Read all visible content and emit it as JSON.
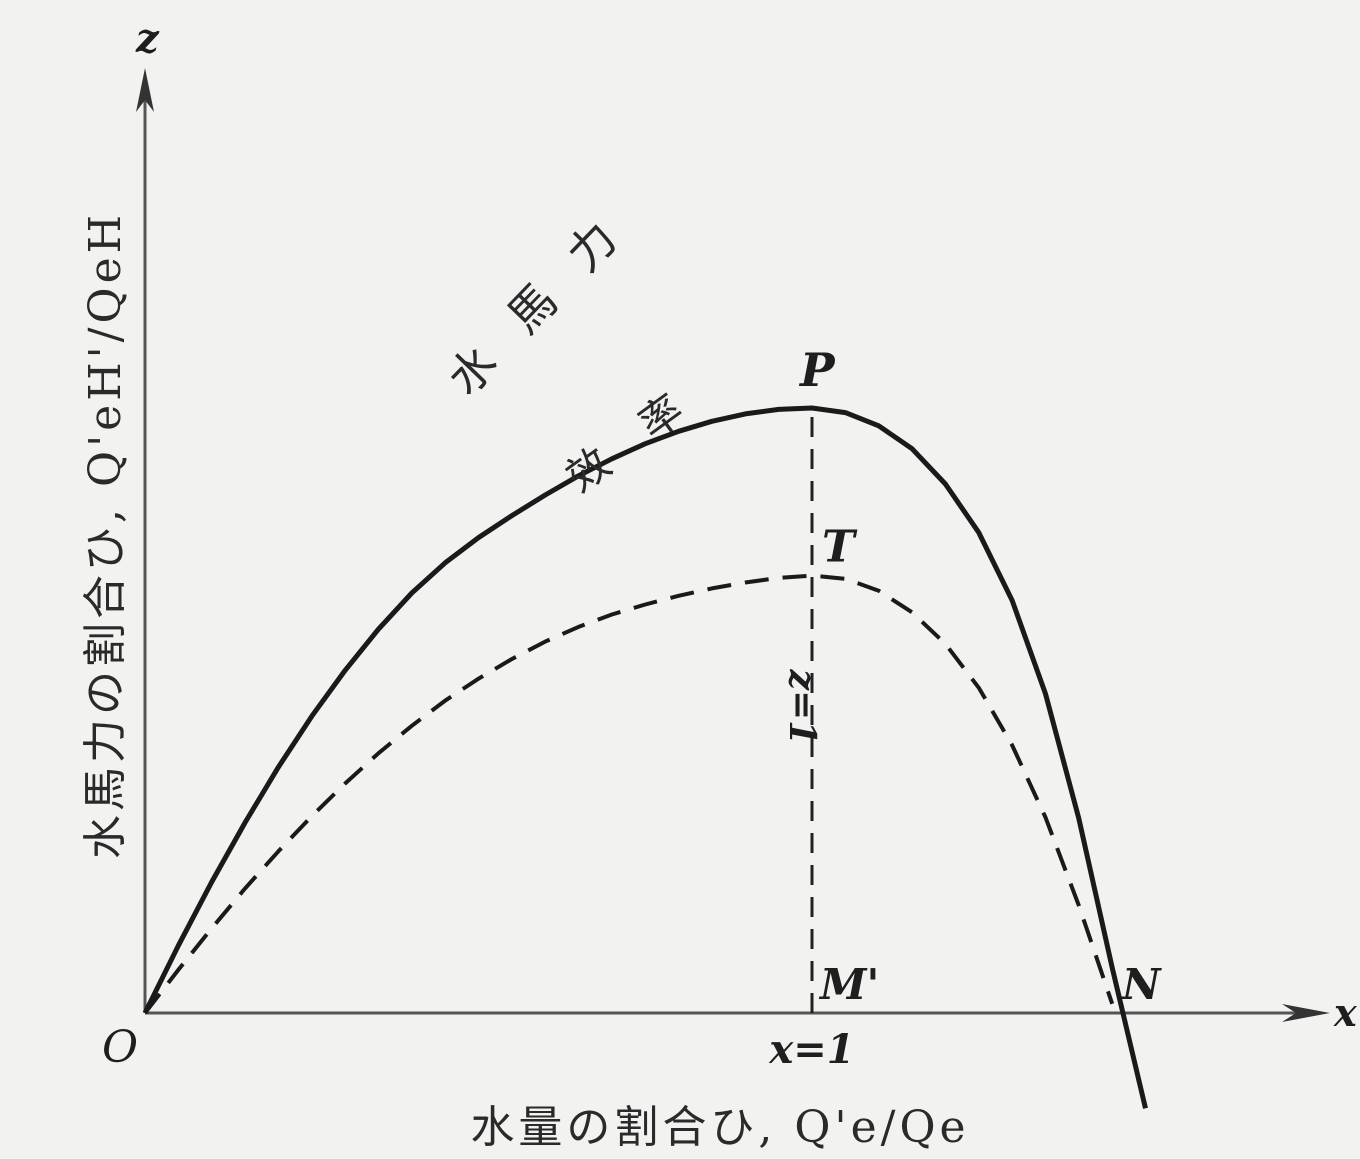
{
  "chart_data": {
    "type": "line",
    "title": "",
    "xlabel": "水量の割合ひ, Q'e/Qe",
    "ylabel": "水馬力の割合ひ, Q'eH'/QeH",
    "x_axis_symbol": "x",
    "y_axis_symbol": "z",
    "origin_label": "O",
    "xlim": [
      0,
      1.55
    ],
    "ylim": [
      -0.25,
      2.05
    ],
    "grid": false,
    "legend": "none",
    "series": [
      {
        "name": "水馬力",
        "style": "solid",
        "color": "#1a1a1a",
        "x": [
          0,
          0.05,
          0.1,
          0.15,
          0.2,
          0.25,
          0.3,
          0.35,
          0.4,
          0.45,
          0.5,
          0.55,
          0.6,
          0.65,
          0.7,
          0.75,
          0.8,
          0.85,
          0.9,
          0.95,
          1.0,
          1.05,
          1.1,
          1.15,
          1.2,
          1.25,
          1.3,
          1.35,
          1.4,
          1.45,
          1.5
        ],
        "y": [
          0,
          0.147,
          0.286,
          0.416,
          0.537,
          0.648,
          0.748,
          0.838,
          0.917,
          0.983,
          1.038,
          1.086,
          1.131,
          1.173,
          1.21,
          1.243,
          1.27,
          1.292,
          1.308,
          1.318,
          1.321,
          1.311,
          1.282,
          1.232,
          1.155,
          1.049,
          0.901,
          0.697,
          0.425,
          0.099,
          -0.208
        ]
      },
      {
        "name": "效率",
        "style": "dashed",
        "color": "#1a1a1a",
        "x": [
          0,
          0.05,
          0.1,
          0.15,
          0.2,
          0.25,
          0.3,
          0.35,
          0.4,
          0.45,
          0.5,
          0.55,
          0.6,
          0.65,
          0.7,
          0.75,
          0.8,
          0.85,
          0.9,
          0.95,
          1.0,
          1.05,
          1.1,
          1.15,
          1.2,
          1.25,
          1.3,
          1.35,
          1.4,
          1.45
        ],
        "y": [
          0,
          0.094,
          0.185,
          0.272,
          0.353,
          0.43,
          0.501,
          0.567,
          0.627,
          0.682,
          0.73,
          0.773,
          0.811,
          0.843,
          0.87,
          0.892,
          0.911,
          0.927,
          0.94,
          0.95,
          0.955,
          0.948,
          0.922,
          0.875,
          0.806,
          0.71,
          0.585,
          0.427,
          0.235,
          0.02
        ]
      }
    ],
    "reference_line": {
      "x": 1.0,
      "label": "z=1",
      "style": "dashed"
    },
    "points": [
      {
        "label": "P",
        "x": 1.0,
        "y": 1.321
      },
      {
        "label": "T",
        "x": 1.0,
        "y": 0.955
      },
      {
        "label": "M'",
        "x": 1.0,
        "y": 0
      },
      {
        "label": "N",
        "x": 1.45,
        "y": 0
      }
    ],
    "x_tick": {
      "value": 1.0,
      "label": "x=1"
    }
  }
}
